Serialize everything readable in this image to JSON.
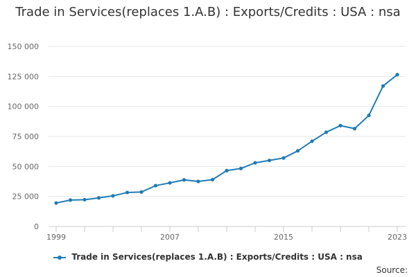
{
  "chart_data": {
    "type": "line",
    "title": "Trade in Services(replaces 1.A.B) : Exports/Credits : USA : nsa",
    "xlabel": "",
    "ylabel": "",
    "x": [
      1999,
      2000,
      2001,
      2002,
      2003,
      2004,
      2005,
      2006,
      2007,
      2008,
      2009,
      2010,
      2011,
      2012,
      2013,
      2014,
      2015,
      2016,
      2017,
      2018,
      2019,
      2020,
      2021,
      2022,
      2023
    ],
    "x_tick_labels": [
      "1999",
      "2007",
      "2015",
      "2023"
    ],
    "x_tick_values": [
      1999,
      2007,
      2015,
      2023
    ],
    "xlim": [
      1999,
      2023
    ],
    "ylim": [
      0,
      150000
    ],
    "y_tick_values": [
      0,
      25000,
      50000,
      75000,
      100000,
      125000,
      150000
    ],
    "y_tick_labels": [
      "0",
      "25 000",
      "50 000",
      "75 000",
      "100 000",
      "125 000",
      "150 000"
    ],
    "series": [
      {
        "name": "Trade in Services(replaces 1.A.B) : Exports/Credits : USA : nsa",
        "color": "#1f7bb6",
        "values": [
          19500,
          22000,
          22300,
          23800,
          25500,
          28300,
          28700,
          34000,
          36300,
          38800,
          37500,
          39000,
          46500,
          48300,
          53000,
          55000,
          57000,
          63000,
          71000,
          78500,
          84000,
          81500,
          92500,
          117000,
          126500
        ]
      }
    ],
    "grid": true,
    "legend_position": "bottom-center"
  },
  "legend": {
    "label": "Trade in Services(replaces 1.A.B) : Exports/Credits : USA : nsa"
  },
  "footer": {
    "source_label": "Source:"
  },
  "colors": {
    "series": "#1f7bb6",
    "grid": "#e6e6e6",
    "axis": "#cccccc"
  }
}
